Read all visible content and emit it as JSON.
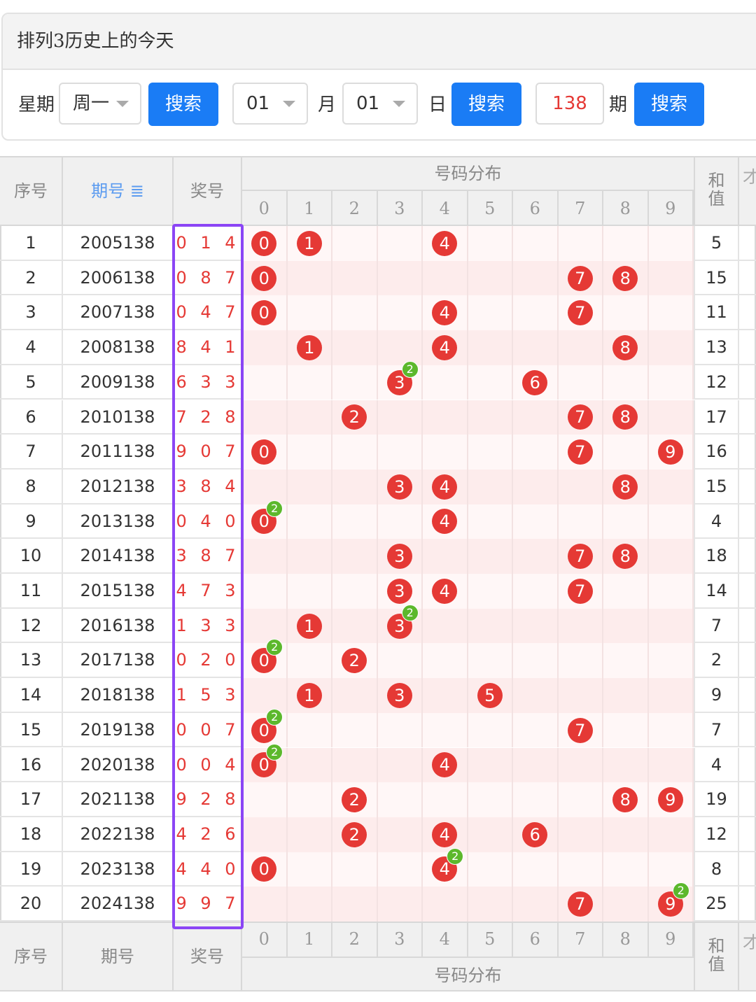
{
  "panel": {
    "title": "排列3历史上的今天",
    "weekday_label": "星期",
    "weekday_value": "周一",
    "search_label": "搜索",
    "month_value": "01",
    "month_label": "月",
    "day_value": "01",
    "day_label": "日",
    "issue_value": "138",
    "issue_label": "期"
  },
  "table": {
    "header": {
      "seq": "序号",
      "issue": "期号",
      "issue_sort_icon": "sort-icon",
      "draw": "奖号",
      "dist": "号码分布",
      "sum": "和值",
      "next_partial": "才"
    },
    "digits": [
      "0",
      "1",
      "2",
      "3",
      "4",
      "5",
      "6",
      "7",
      "8",
      "9"
    ],
    "colors": {
      "ball": "#e53935",
      "badge": "#5cb82c",
      "highlight": "#8b45f5",
      "sort_blue": "#5b9bf0"
    },
    "rows": [
      {
        "seq": "1",
        "issue": "2005138",
        "draw": "0 1 4",
        "sum": "5"
      },
      {
        "seq": "2",
        "issue": "2006138",
        "draw": "0 8 7",
        "sum": "15"
      },
      {
        "seq": "3",
        "issue": "2007138",
        "draw": "0 4 7",
        "sum": "11"
      },
      {
        "seq": "4",
        "issue": "2008138",
        "draw": "8 4 1",
        "sum": "13"
      },
      {
        "seq": "5",
        "issue": "2009138",
        "draw": "6 3 3",
        "sum": "12"
      },
      {
        "seq": "6",
        "issue": "2010138",
        "draw": "7 2 8",
        "sum": "17"
      },
      {
        "seq": "7",
        "issue": "2011138",
        "draw": "9 0 7",
        "sum": "16"
      },
      {
        "seq": "8",
        "issue": "2012138",
        "draw": "3 8 4",
        "sum": "15"
      },
      {
        "seq": "9",
        "issue": "2013138",
        "draw": "0 4 0",
        "sum": "4"
      },
      {
        "seq": "10",
        "issue": "2014138",
        "draw": "3 8 7",
        "sum": "18"
      },
      {
        "seq": "11",
        "issue": "2015138",
        "draw": "4 7 3",
        "sum": "14"
      },
      {
        "seq": "12",
        "issue": "2016138",
        "draw": "1 3 3",
        "sum": "7"
      },
      {
        "seq": "13",
        "issue": "2017138",
        "draw": "0 2 0",
        "sum": "2"
      },
      {
        "seq": "14",
        "issue": "2018138",
        "draw": "1 5 3",
        "sum": "9"
      },
      {
        "seq": "15",
        "issue": "2019138",
        "draw": "0 0 7",
        "sum": "7"
      },
      {
        "seq": "16",
        "issue": "2020138",
        "draw": "0 0 4",
        "sum": "4"
      },
      {
        "seq": "17",
        "issue": "2021138",
        "draw": "9 2 8",
        "sum": "19"
      },
      {
        "seq": "18",
        "issue": "2022138",
        "draw": "4 2 6",
        "sum": "12"
      },
      {
        "seq": "19",
        "issue": "2023138",
        "draw": "4 4 0",
        "sum": "8"
      },
      {
        "seq": "20",
        "issue": "2024138",
        "draw": "9 9 7",
        "sum": "25"
      }
    ],
    "repeat_badge": "2"
  }
}
